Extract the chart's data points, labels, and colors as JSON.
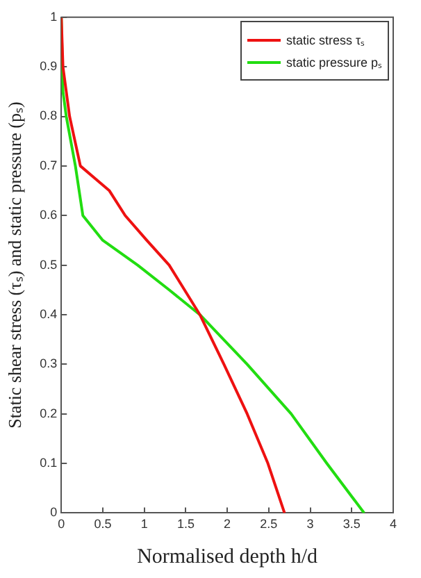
{
  "chart_data": {
    "type": "line",
    "xlabel": "Normalised depth h/d",
    "ylabel": "Static shear stress (τₛ) and static pressure (pₛ)",
    "xlim": [
      0,
      4
    ],
    "xticks": [
      0,
      0.5,
      1,
      1.5,
      2,
      2.5,
      3,
      3.5,
      4
    ],
    "ylim": [
      0,
      1
    ],
    "yticks": [
      0,
      0.1,
      0.2,
      0.3,
      0.4,
      0.5,
      0.6,
      0.7,
      0.8,
      0.9,
      1
    ],
    "grid": false,
    "legend": "top right",
    "marker": "none",
    "line_style": "solid",
    "series": [
      {
        "name": "static stress τₛ",
        "color": "#ee1111",
        "x": [
          0,
          0.02,
          0.1,
          0.23,
          0.58,
          0.77,
          1.03,
          1.3,
          1.67,
          1.96,
          2.24,
          2.49,
          2.69
        ],
        "values": [
          1,
          0.9,
          0.8,
          0.7,
          0.65,
          0.6,
          0.55,
          0.5,
          0.4,
          0.3,
          0.2,
          0.1,
          0
        ]
      },
      {
        "name": "static pressure pₛ",
        "color": "#22dd11",
        "x": [
          0,
          0.02,
          0.06,
          0.17,
          0.26,
          0.5,
          0.92,
          1.3,
          1.67,
          2.24,
          2.77,
          3.2,
          3.65
        ],
        "values": [
          1,
          0.85,
          0.8,
          0.7,
          0.6,
          0.55,
          0.5,
          0.45,
          0.4,
          0.3,
          0.2,
          0.1,
          0
        ]
      }
    ]
  }
}
